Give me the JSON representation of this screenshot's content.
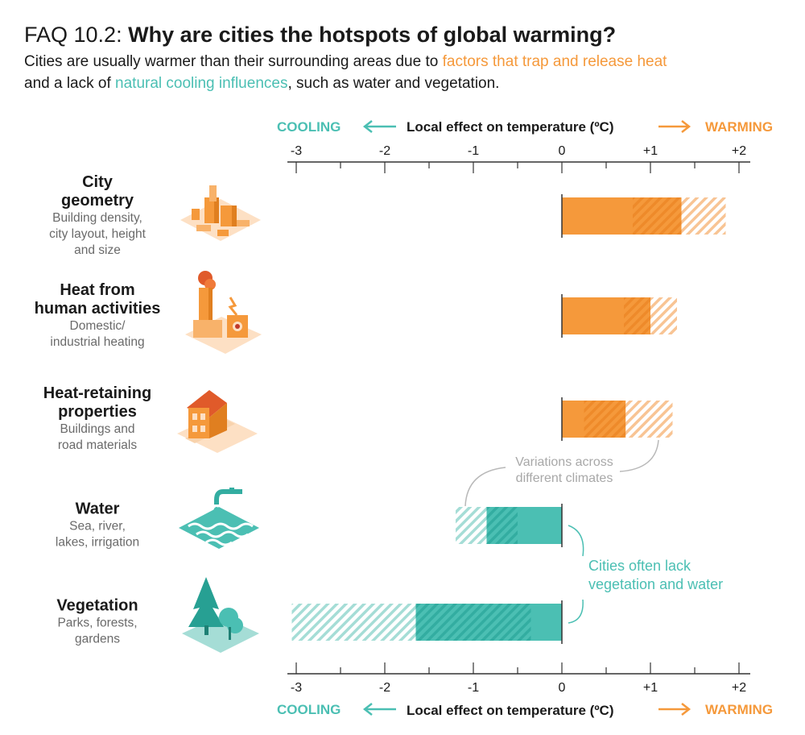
{
  "header": {
    "faq_label": "FAQ 10.2:",
    "question": "Why are cities the hotspots of global warming?",
    "subtitle_part1": "Cities are usually warmer than their surrounding areas due to ",
    "subtitle_warm": "factors that trap and release heat",
    "subtitle_part2": "and a lack of ",
    "subtitle_cool": "natural cooling influences",
    "subtitle_part3": ", such as water and vegetation."
  },
  "axis": {
    "label": "Local effect on temperature (ºC)",
    "cooling": "COOLING",
    "warming": "WARMING"
  },
  "annotations": {
    "variations": [
      "Variations across",
      "different climates"
    ],
    "lack": [
      "Cities often lack",
      "vegetation and water"
    ]
  },
  "colors": {
    "warm": "#f5993b",
    "cool": "#4bbfb3",
    "text_gray": "#6a6a6a",
    "annotation_gray": "#a8a8a8"
  },
  "icons": [
    "city-geometry-icon",
    "factory-icon",
    "house-icon",
    "water-tap-icon",
    "tree-icon"
  ],
  "chart_data": {
    "type": "bar",
    "orientation": "horizontal",
    "xlim": [
      -3.1,
      2.1
    ],
    "ticks": [
      -3,
      -2,
      -1,
      0,
      1,
      2
    ],
    "tick_labels": [
      "-3",
      "-2",
      "-1",
      "0",
      "+1",
      "+2"
    ],
    "categories": [
      {
        "title": [
          "City",
          "geometry"
        ],
        "desc": [
          "Building density,",
          "city layout, height",
          "and size"
        ],
        "solid": [
          0,
          0.8
        ],
        "dark": [
          0.8,
          1.35
        ],
        "light": [
          1.35,
          1.85
        ],
        "side": "warm"
      },
      {
        "title": [
          "Heat from",
          "human activities"
        ],
        "desc": [
          "Domestic/",
          "industrial heating"
        ],
        "solid": [
          0,
          0.7
        ],
        "dark": [
          0.7,
          1.0
        ],
        "light": [
          1.0,
          1.3
        ],
        "side": "warm"
      },
      {
        "title": [
          "Heat-retaining",
          "properties"
        ],
        "desc": [
          "Buildings and",
          "road materials"
        ],
        "solid": [
          0,
          0.25
        ],
        "dark": [
          0.25,
          0.72
        ],
        "light": [
          0.72,
          1.25
        ],
        "side": "warm"
      },
      {
        "title": [
          "Water"
        ],
        "desc": [
          "Sea, river,",
          "lakes, irrigation"
        ],
        "solid": [
          -0.5,
          0
        ],
        "dark": [
          -0.85,
          -0.5
        ],
        "light": [
          -1.2,
          -0.85
        ],
        "side": "cool"
      },
      {
        "title": [
          "Vegetation"
        ],
        "desc": [
          "Parks, forests,",
          "gardens"
        ],
        "solid": [
          -0.35,
          0
        ],
        "dark": [
          -1.65,
          -0.35
        ],
        "light": [
          -3.05,
          -1.65
        ],
        "side": "cool"
      }
    ]
  }
}
